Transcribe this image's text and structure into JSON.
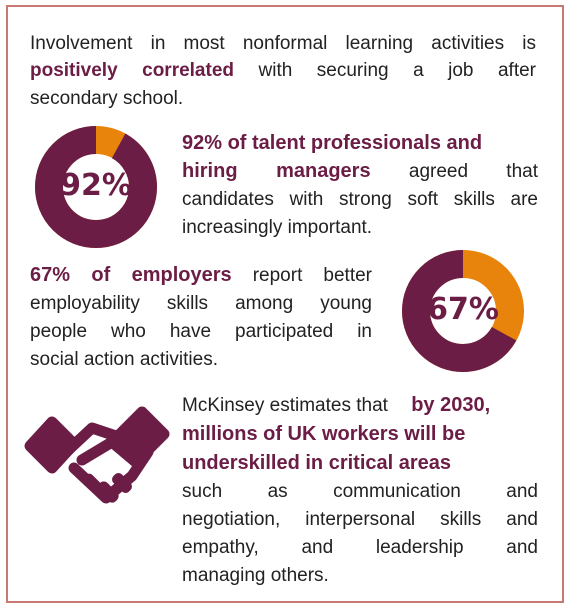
{
  "colors": {
    "primary": "#6b1d45",
    "accent": "#e8830c",
    "border": "#c87a72",
    "text": "#222222"
  },
  "intro": {
    "lead": "Involvement in most nonformal learning activities is",
    "highlight": "positively correlated",
    "tail": "with securing a job after",
    "end": "secondary school."
  },
  "stat1": {
    "donut_label": "92%",
    "donut_fraction": 0.92,
    "line1": "92% of talent professionals and",
    "line2_bold": "hiring managers",
    "line2_rest": "agreed that",
    "line3": "candidates with strong soft skills are",
    "line4": "increasingly important."
  },
  "stat2": {
    "donut_label": "67%",
    "donut_fraction": 0.67,
    "line1_bold": "67% of employers",
    "line1_rest": "report better",
    "line2": "employability skills among young",
    "line3": "people who have participated in",
    "line4": "social action activities."
  },
  "stat3": {
    "icon": "handshake-icon",
    "line1_plain": "McKinsey estimates that",
    "line1_bold": "by 2030,",
    "line2": "millions of UK workers will be",
    "line3": "underskilled in critical areas",
    "line4": "such as communication and",
    "line5": "negotiation, interpersonal skills and",
    "line6": "empathy, and leadership and",
    "line7": "managing others."
  }
}
